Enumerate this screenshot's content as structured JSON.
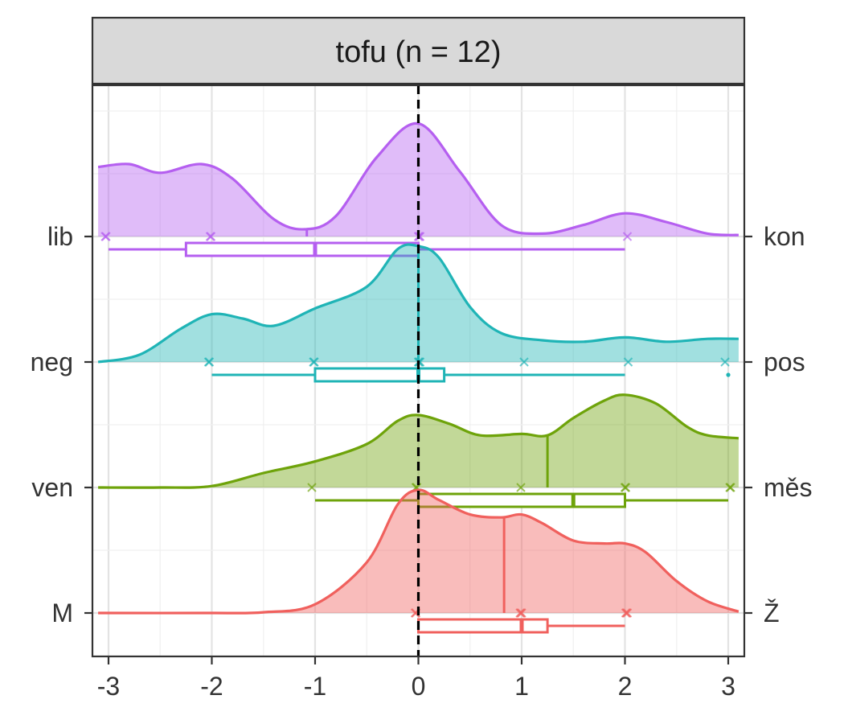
{
  "chart_data": {
    "type": "ridgeline",
    "facet_title": "tofu (n = 12)",
    "xlim": [
      -3.1,
      3.1
    ],
    "x_ticks": [
      "-3",
      "-2",
      "-1",
      "0",
      "1",
      "2",
      "3"
    ],
    "x_tick_values": [
      -3,
      -2,
      -1,
      0,
      1,
      2,
      3
    ],
    "reference_line_x": 0,
    "grid": true,
    "series": [
      {
        "left_label": "M",
        "right_label": "Ž",
        "color": "#F0605D",
        "density": [
          [
            -3.1,
            0
          ],
          [
            -2,
            0
          ],
          [
            -1.5,
            0.005
          ],
          [
            -1,
            0.06
          ],
          [
            -0.5,
            0.35
          ],
          [
            -0.2,
            0.75
          ],
          [
            0,
            0.85
          ],
          [
            0.2,
            0.78
          ],
          [
            0.5,
            0.68
          ],
          [
            0.8,
            0.66
          ],
          [
            1.0,
            0.68
          ],
          [
            1.2,
            0.62
          ],
          [
            1.5,
            0.5
          ],
          [
            1.8,
            0.48
          ],
          [
            2.0,
            0.48
          ],
          [
            2.2,
            0.42
          ],
          [
            2.5,
            0.22
          ],
          [
            2.8,
            0.08
          ],
          [
            3.1,
            0.01
          ]
        ],
        "mean": 0.83,
        "box": {
          "min": 0,
          "q1": 0,
          "median": 1,
          "q3": 1.25,
          "max": 2
        },
        "points": [
          0,
          0,
          1,
          1,
          1,
          2,
          2,
          2
        ],
        "outliers": []
      },
      {
        "left_label": "ven",
        "right_label": "měs",
        "color": "#6EA30A",
        "density": [
          [
            -3.1,
            0
          ],
          [
            -2.5,
            0
          ],
          [
            -2,
            0.01
          ],
          [
            -1.5,
            0.1
          ],
          [
            -1,
            0.18
          ],
          [
            -0.5,
            0.3
          ],
          [
            -0.2,
            0.46
          ],
          [
            0,
            0.5
          ],
          [
            0.3,
            0.44
          ],
          [
            0.6,
            0.36
          ],
          [
            1.0,
            0.37
          ],
          [
            1.25,
            0.36
          ],
          [
            1.5,
            0.48
          ],
          [
            1.8,
            0.6
          ],
          [
            2.0,
            0.64
          ],
          [
            2.3,
            0.58
          ],
          [
            2.6,
            0.42
          ],
          [
            2.8,
            0.36
          ],
          [
            3.1,
            0.34
          ]
        ],
        "mean": 1.25,
        "box": {
          "min": -1,
          "q1": 0,
          "median": 1.5,
          "q3": 2,
          "max": 3
        },
        "points": [
          -1,
          0,
          0,
          1,
          2,
          2,
          3,
          3
        ],
        "outliers": []
      },
      {
        "left_label": "neg",
        "right_label": "pos",
        "color": "#1FB4B6",
        "density": [
          [
            -3.1,
            0
          ],
          [
            -2.7,
            0.05
          ],
          [
            -2.3,
            0.23
          ],
          [
            -2.0,
            0.33
          ],
          [
            -1.7,
            0.3
          ],
          [
            -1.4,
            0.25
          ],
          [
            -1.0,
            0.37
          ],
          [
            -0.5,
            0.52
          ],
          [
            -0.2,
            0.78
          ],
          [
            0,
            0.8
          ],
          [
            0.2,
            0.72
          ],
          [
            0.5,
            0.38
          ],
          [
            0.8,
            0.2
          ],
          [
            1.2,
            0.15
          ],
          [
            1.6,
            0.14
          ],
          [
            2.0,
            0.17
          ],
          [
            2.4,
            0.14
          ],
          [
            2.8,
            0.16
          ],
          [
            3.1,
            0.16
          ]
        ],
        "mean": 0,
        "box": {
          "min": -2,
          "q1": -1,
          "median": 0,
          "q3": 0.25,
          "max": 2
        },
        "points": [
          -2,
          -2,
          -1,
          -1,
          0,
          0,
          0,
          1,
          2,
          3
        ],
        "outliers": [
          3
        ]
      },
      {
        "left_label": "lib",
        "right_label": "kon",
        "color": "#B55FF0",
        "density": [
          [
            -3.1,
            0.48
          ],
          [
            -2.8,
            0.5
          ],
          [
            -2.5,
            0.44
          ],
          [
            -2.1,
            0.5
          ],
          [
            -1.8,
            0.4
          ],
          [
            -1.4,
            0.12
          ],
          [
            -1.1,
            0.05
          ],
          [
            -0.8,
            0.14
          ],
          [
            -0.4,
            0.55
          ],
          [
            0,
            0.78
          ],
          [
            0.4,
            0.45
          ],
          [
            0.8,
            0.08
          ],
          [
            1.2,
            0.02
          ],
          [
            1.6,
            0.08
          ],
          [
            2.0,
            0.16
          ],
          [
            2.4,
            0.1
          ],
          [
            2.8,
            0.02
          ],
          [
            3.1,
            0.01
          ]
        ],
        "mean": -1.08,
        "box": {
          "min": -3,
          "q1": -2.25,
          "median": -1,
          "q3": 0,
          "max": 2
        },
        "points": [
          -3,
          -3,
          -2,
          -2,
          0,
          0,
          0,
          2
        ],
        "outliers": []
      }
    ]
  }
}
